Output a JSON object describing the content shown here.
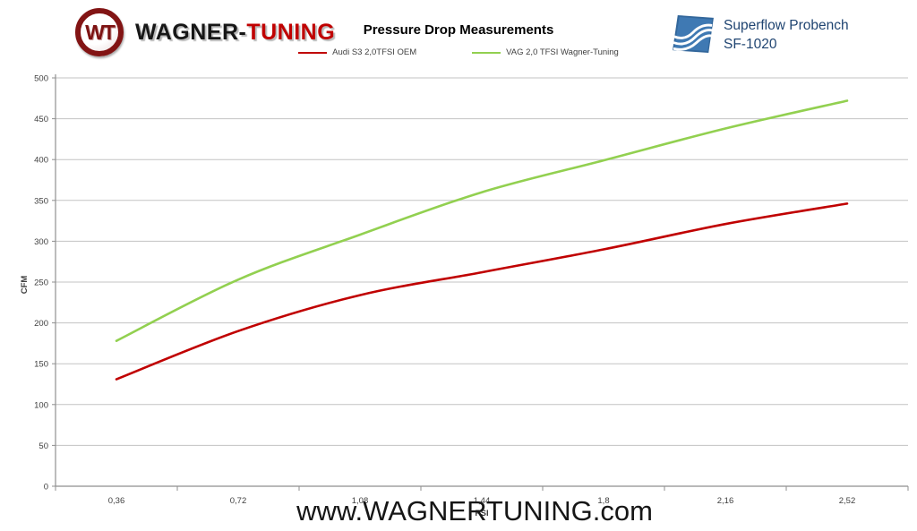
{
  "header": {
    "brand": {
      "monogram": "WT",
      "name_black": "WAGNER-",
      "name_red": "TUNING"
    },
    "bench": {
      "line1": "Superflow Probench",
      "line2": "SF-1020"
    }
  },
  "chart_data": {
    "type": "line",
    "title": "Pressure Drop Measurements",
    "xlabel": "PSI",
    "ylabel": "CFM",
    "categories": [
      "0,36",
      "0,72",
      "1,08",
      "1,44",
      "1,8",
      "2,16",
      "2,52"
    ],
    "x_values": [
      0.36,
      0.72,
      1.08,
      1.44,
      1.8,
      2.16,
      2.52
    ],
    "series": [
      {
        "name": "Audi S3 2,0TFSI OEM",
        "color": "#c00000",
        "values": [
          131,
          190,
          234,
          262,
          290,
          321,
          346
        ]
      },
      {
        "name": "VAG 2,0 TFSI  Wagner-Tuning",
        "color": "#92d050",
        "values": [
          178,
          253,
          308,
          360,
          399,
          438,
          472
        ]
      }
    ],
    "ylim": [
      0,
      500
    ],
    "yticks": [
      0,
      50,
      100,
      150,
      200,
      250,
      300,
      350,
      400,
      450,
      500
    ],
    "grid": true,
    "legend_position": "top",
    "grid_color": "#c3c3c3",
    "axis_color": "#8f8f8f",
    "tick_label_color": "#3f3f3f"
  },
  "footer": {
    "watermark": "www.WAGNERTUNING.com"
  }
}
